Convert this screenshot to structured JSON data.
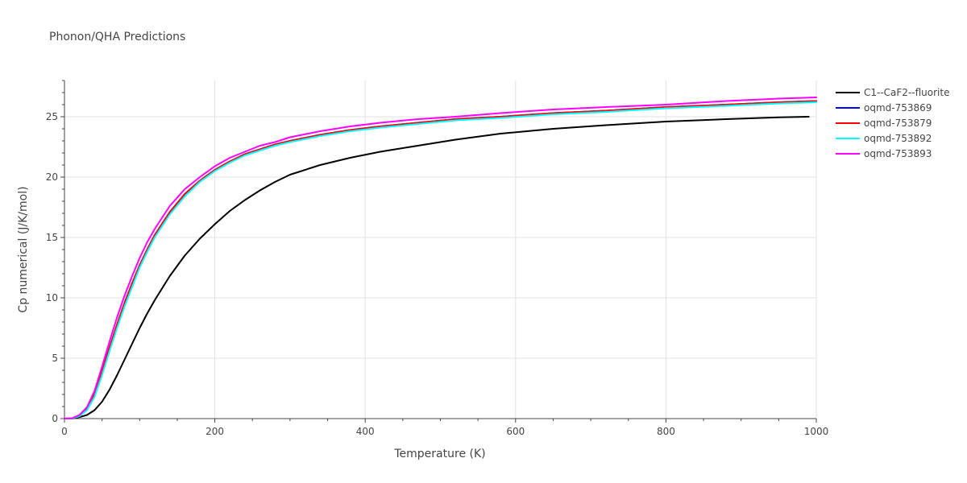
{
  "chart_data": {
    "type": "line",
    "title": "Phonon/QHA Predictions",
    "xlabel": "Temperature (K)",
    "ylabel": "Cp numerical (J/K/mol)",
    "xlim": [
      0,
      1000
    ],
    "ylim": [
      0,
      28
    ],
    "x_ticks": [
      0,
      200,
      400,
      600,
      800,
      1000
    ],
    "y_ticks": [
      0,
      5,
      10,
      15,
      20,
      25
    ],
    "grid": true,
    "legend_position": "top-right",
    "series": [
      {
        "name": "C1--CaF2--fluorite",
        "color": "#000000",
        "x": [
          0,
          10,
          20,
          30,
          40,
          50,
          60,
          70,
          80,
          90,
          100,
          110,
          120,
          140,
          160,
          180,
          200,
          220,
          240,
          260,
          280,
          300,
          340,
          380,
          420,
          470,
          520,
          580,
          650,
          720,
          800,
          880,
          950,
          990
        ],
        "y": [
          0,
          0.01,
          0.12,
          0.3,
          0.7,
          1.4,
          2.4,
          3.6,
          4.9,
          6.2,
          7.5,
          8.7,
          9.8,
          11.8,
          13.5,
          14.9,
          16.1,
          17.2,
          18.1,
          18.9,
          19.6,
          20.2,
          21.0,
          21.6,
          22.1,
          22.6,
          23.1,
          23.6,
          24.0,
          24.3,
          24.6,
          24.8,
          24.95,
          25.0
        ]
      },
      {
        "name": "oqmd-753869",
        "color": "#0000ff",
        "x": [
          0,
          10,
          20,
          30,
          40,
          50,
          60,
          70,
          80,
          90,
          100,
          110,
          120,
          140,
          160,
          180,
          200,
          220,
          240,
          260,
          280,
          300,
          340,
          380,
          420,
          470,
          520,
          580,
          650,
          720,
          800,
          880,
          950,
          1000
        ],
        "y": [
          0,
          0.02,
          0.25,
          0.8,
          2.0,
          3.9,
          5.9,
          7.8,
          9.6,
          11.2,
          12.7,
          14.0,
          15.2,
          17.1,
          18.6,
          19.7,
          20.6,
          21.3,
          21.9,
          22.3,
          22.7,
          23.0,
          23.5,
          23.9,
          24.2,
          24.5,
          24.8,
          25.0,
          25.3,
          25.5,
          25.8,
          26.0,
          26.2,
          26.3
        ]
      },
      {
        "name": "oqmd-753879",
        "color": "#ff0000",
        "x": [
          0,
          10,
          20,
          30,
          40,
          50,
          60,
          70,
          80,
          90,
          100,
          110,
          120,
          140,
          160,
          180,
          200,
          220,
          240,
          260,
          280,
          300,
          340,
          380,
          420,
          470,
          520,
          580,
          650,
          720,
          800,
          880,
          950,
          1000
        ],
        "y": [
          0,
          0.02,
          0.25,
          0.8,
          2.0,
          3.9,
          5.9,
          7.8,
          9.6,
          11.2,
          12.7,
          14.0,
          15.2,
          17.1,
          18.6,
          19.7,
          20.6,
          21.3,
          21.9,
          22.3,
          22.7,
          23.0,
          23.5,
          23.9,
          24.2,
          24.5,
          24.8,
          25.0,
          25.3,
          25.5,
          25.8,
          26.0,
          26.2,
          26.3
        ]
      },
      {
        "name": "oqmd-753892",
        "color": "#00ffff",
        "x": [
          0,
          10,
          20,
          30,
          40,
          50,
          60,
          70,
          80,
          90,
          100,
          110,
          120,
          140,
          160,
          180,
          200,
          220,
          240,
          260,
          280,
          300,
          340,
          380,
          420,
          470,
          520,
          580,
          650,
          720,
          800,
          880,
          950,
          1000
        ],
        "y": [
          0,
          0.02,
          0.2,
          0.7,
          1.8,
          3.6,
          5.6,
          7.5,
          9.3,
          10.9,
          12.5,
          13.8,
          15.0,
          16.9,
          18.4,
          19.6,
          20.5,
          21.2,
          21.8,
          22.2,
          22.6,
          22.9,
          23.4,
          23.8,
          24.1,
          24.4,
          24.7,
          24.9,
          25.2,
          25.4,
          25.7,
          25.9,
          26.1,
          26.2
        ]
      },
      {
        "name": "oqmd-753893",
        "color": "#ff00ff",
        "x": [
          0,
          10,
          20,
          30,
          40,
          50,
          60,
          70,
          80,
          90,
          100,
          110,
          120,
          140,
          160,
          180,
          200,
          220,
          240,
          260,
          280,
          300,
          340,
          380,
          420,
          470,
          520,
          580,
          650,
          720,
          800,
          880,
          950,
          1000
        ],
        "y": [
          0,
          0.03,
          0.3,
          0.95,
          2.3,
          4.3,
          6.4,
          8.4,
          10.2,
          11.8,
          13.3,
          14.6,
          15.7,
          17.6,
          19.0,
          20.0,
          20.9,
          21.6,
          22.1,
          22.6,
          22.9,
          23.3,
          23.8,
          24.2,
          24.5,
          24.8,
          25.0,
          25.3,
          25.6,
          25.8,
          26.0,
          26.3,
          26.5,
          26.6
        ]
      }
    ]
  }
}
